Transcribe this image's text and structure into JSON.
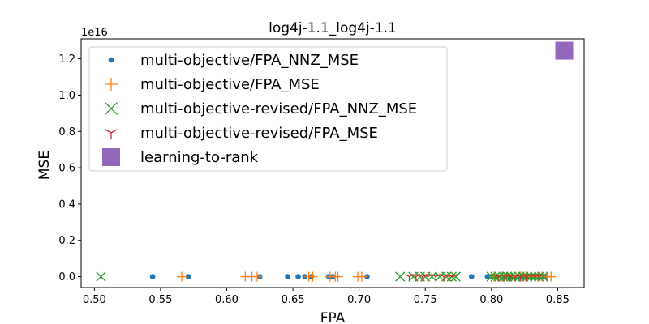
{
  "chart_data": {
    "type": "scatter",
    "title": "log4j-1.1_log4j-1.1",
    "xlabel": "FPA",
    "ylabel": "MSE",
    "y_offset_label": "1e16",
    "xlim": [
      0.49,
      0.87
    ],
    "ylim": [
      -0.06,
      1.31
    ],
    "xticks": [
      0.5,
      0.55,
      0.6,
      0.65,
      0.7,
      0.75,
      0.8,
      0.85
    ],
    "xtick_labels": [
      "0.50",
      "0.55",
      "0.60",
      "0.65",
      "0.70",
      "0.75",
      "0.80",
      "0.85"
    ],
    "yticks": [
      0.0,
      0.2,
      0.4,
      0.6,
      0.8,
      1.0,
      1.2
    ],
    "ytick_labels": [
      "0.0",
      "0.2",
      "0.4",
      "0.6",
      "0.8",
      "1.0",
      "1.2"
    ],
    "legend_position": "upper-left",
    "series": [
      {
        "name": "multi-objective/FPA_NNZ_MSE",
        "marker": "dot",
        "color": "#1f77b4",
        "x": [
          0.544,
          0.571,
          0.625,
          0.646,
          0.654,
          0.659,
          0.664,
          0.677,
          0.68,
          0.706,
          0.785,
          0.797,
          0.8,
          0.804,
          0.808,
          0.812,
          0.816,
          0.82,
          0.824,
          0.828,
          0.832,
          0.836,
          0.84
        ],
        "y": [
          0,
          0,
          0,
          0,
          0,
          0,
          0,
          0,
          0,
          0,
          0,
          0,
          0,
          0,
          0,
          0,
          0,
          0,
          0,
          0,
          0,
          0,
          0
        ]
      },
      {
        "name": "multi-objective/FPA_MSE",
        "marker": "plus",
        "color": "#ff7f0e",
        "x": [
          0.566,
          0.614,
          0.619,
          0.623,
          0.662,
          0.665,
          0.678,
          0.682,
          0.684,
          0.699,
          0.702,
          0.802,
          0.808,
          0.812,
          0.817,
          0.822,
          0.826,
          0.83,
          0.835,
          0.838,
          0.842,
          0.845
        ],
        "y": [
          0,
          0,
          0,
          0,
          0,
          0,
          0,
          0,
          0,
          0,
          0,
          0,
          0,
          0,
          0,
          0,
          0,
          0,
          0,
          0,
          0,
          0
        ]
      },
      {
        "name": "multi-objective-revised/FPA_NNZ_MSE",
        "marker": "x",
        "color": "#2ca02c",
        "x": [
          0.505,
          0.731,
          0.741,
          0.746,
          0.75,
          0.755,
          0.761,
          0.766,
          0.77,
          0.773,
          0.8,
          0.803,
          0.806,
          0.809,
          0.812,
          0.815,
          0.818,
          0.821,
          0.824,
          0.827,
          0.83,
          0.833,
          0.836,
          0.839
        ],
        "y": [
          0,
          0,
          0,
          0,
          0,
          0,
          0,
          0,
          0,
          0,
          0,
          0,
          0,
          0,
          0,
          0,
          0,
          0,
          0,
          0,
          0,
          0,
          0,
          0
        ]
      },
      {
        "name": "multi-objective-revised/FPA_MSE",
        "marker": "tri_down",
        "color": "#d62728",
        "x": [
          0.738,
          0.743,
          0.748,
          0.752,
          0.758,
          0.764,
          0.768,
          0.771,
          0.805,
          0.81,
          0.814,
          0.818,
          0.822,
          0.826,
          0.83,
          0.833,
          0.836
        ],
        "y": [
          0,
          0,
          0,
          0,
          0,
          0,
          0,
          0,
          0,
          0,
          0,
          0,
          0,
          0,
          0,
          0,
          0
        ]
      },
      {
        "name": "learning-to-rank",
        "marker": "square",
        "color": "#9467bd",
        "x": [
          0.855
        ],
        "y": [
          1.245
        ]
      }
    ]
  }
}
